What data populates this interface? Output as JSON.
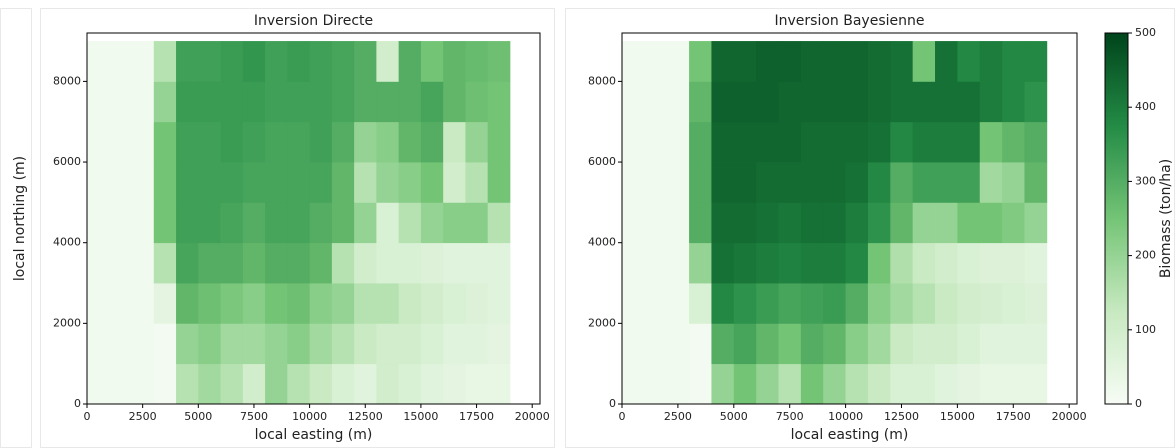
{
  "chart_data": [
    {
      "type": "heatmap",
      "title": "Inversion Directe",
      "x_label": "local easting (m)",
      "y_label": "local northing (m)",
      "x": [
        500,
        1500,
        2500,
        3500,
        4500,
        5500,
        6500,
        7500,
        8500,
        9500,
        10500,
        11500,
        12500,
        13500,
        14500,
        15500,
        16500,
        17500,
        18500,
        19500
      ],
      "y": [
        500,
        1500,
        2500,
        3500,
        4500,
        5500,
        6500,
        7500,
        8500
      ],
      "z": [
        [
          15,
          15,
          15,
          10,
          150,
          180,
          150,
          100,
          200,
          150,
          120,
          80,
          60,
          100,
          80,
          60,
          50,
          40,
          40,
          null
        ],
        [
          15,
          15,
          15,
          10,
          200,
          220,
          180,
          180,
          200,
          220,
          180,
          150,
          120,
          100,
          100,
          80,
          60,
          60,
          50,
          null
        ],
        [
          15,
          15,
          15,
          50,
          280,
          260,
          240,
          220,
          250,
          260,
          220,
          200,
          150,
          150,
          120,
          100,
          80,
          70,
          60,
          null
        ],
        [
          15,
          15,
          15,
          150,
          320,
          300,
          300,
          280,
          300,
          300,
          280,
          150,
          100,
          80,
          80,
          70,
          60,
          60,
          60,
          null
        ],
        [
          15,
          15,
          15,
          250,
          330,
          330,
          320,
          300,
          320,
          320,
          300,
          280,
          200,
          80,
          150,
          200,
          220,
          220,
          150,
          null
        ],
        [
          15,
          15,
          15,
          250,
          330,
          330,
          330,
          320,
          320,
          320,
          320,
          280,
          150,
          200,
          220,
          250,
          100,
          150,
          250,
          null
        ],
        [
          15,
          15,
          15,
          250,
          330,
          330,
          340,
          330,
          320,
          320,
          330,
          300,
          200,
          220,
          280,
          300,
          120,
          200,
          250,
          null
        ],
        [
          15,
          15,
          15,
          200,
          340,
          340,
          340,
          340,
          330,
          330,
          330,
          320,
          300,
          300,
          300,
          320,
          280,
          260,
          250,
          null
        ],
        [
          15,
          15,
          15,
          150,
          330,
          330,
          340,
          350,
          330,
          340,
          330,
          320,
          300,
          100,
          300,
          250,
          280,
          270,
          260,
          null
        ]
      ],
      "xlim": [
        0,
        20350
      ],
      "ylim": [
        0,
        9200
      ],
      "xticks": [
        0,
        2500,
        5000,
        7500,
        10000,
        12500,
        15000,
        17500,
        20000
      ],
      "yticks": [
        0,
        2000,
        4000,
        6000,
        8000
      ],
      "zlim": [
        0,
        500
      ],
      "colormap": [
        "#f7fcf5",
        "#c7e9c0",
        "#74c476",
        "#238b45",
        "#00441b"
      ]
    },
    {
      "type": "heatmap",
      "title": "Inversion Bayesienne",
      "x_label": "local easting (m)",
      "x": [
        500,
        1500,
        2500,
        3500,
        4500,
        5500,
        6500,
        7500,
        8500,
        9500,
        10500,
        11500,
        12500,
        13500,
        14500,
        15500,
        16500,
        17500,
        18500,
        19500
      ],
      "y": [
        500,
        1500,
        2500,
        3500,
        4500,
        5500,
        6500,
        7500,
        8500
      ],
      "z": [
        [
          15,
          15,
          15,
          10,
          200,
          250,
          200,
          150,
          250,
          200,
          150,
          120,
          80,
          80,
          60,
          50,
          40,
          40,
          40,
          null
        ],
        [
          15,
          15,
          15,
          10,
          300,
          320,
          280,
          250,
          300,
          280,
          220,
          180,
          120,
          100,
          100,
          80,
          60,
          60,
          60,
          null
        ],
        [
          15,
          15,
          15,
          80,
          380,
          360,
          340,
          320,
          330,
          340,
          300,
          220,
          180,
          150,
          120,
          100,
          90,
          80,
          70,
          null
        ],
        [
          15,
          15,
          15,
          200,
          420,
          410,
          400,
          390,
          400,
          400,
          380,
          250,
          160,
          120,
          100,
          80,
          70,
          70,
          60,
          null
        ],
        [
          15,
          15,
          15,
          300,
          430,
          430,
          420,
          410,
          420,
          420,
          400,
          360,
          280,
          200,
          200,
          250,
          250,
          230,
          200,
          null
        ],
        [
          15,
          15,
          15,
          300,
          440,
          440,
          430,
          430,
          430,
          430,
          420,
          380,
          300,
          330,
          330,
          330,
          180,
          200,
          280,
          null
        ],
        [
          15,
          15,
          15,
          300,
          440,
          440,
          440,
          440,
          430,
          430,
          430,
          420,
          380,
          400,
          400,
          400,
          250,
          280,
          300,
          null
        ],
        [
          15,
          15,
          15,
          280,
          450,
          450,
          450,
          440,
          440,
          440,
          440,
          430,
          420,
          420,
          420,
          420,
          400,
          380,
          360,
          null
        ],
        [
          15,
          15,
          15,
          250,
          440,
          440,
          450,
          450,
          440,
          440,
          440,
          430,
          420,
          250,
          420,
          380,
          400,
          380,
          380,
          null
        ]
      ],
      "xlim": [
        0,
        20350
      ],
      "ylim": [
        0,
        9200
      ],
      "xticks": [
        0,
        2500,
        5000,
        7500,
        10000,
        12500,
        15000,
        17500,
        20000
      ],
      "yticks": [
        0,
        2000,
        4000,
        6000,
        8000
      ],
      "zlim": [
        0,
        500
      ],
      "colormap": [
        "#f7fcf5",
        "#c7e9c0",
        "#74c476",
        "#238b45",
        "#00441b"
      ],
      "colorbar": {
        "label": "Biomass (ton/ha)",
        "ticks": [
          0,
          100,
          200,
          300,
          400,
          500
        ]
      }
    }
  ]
}
